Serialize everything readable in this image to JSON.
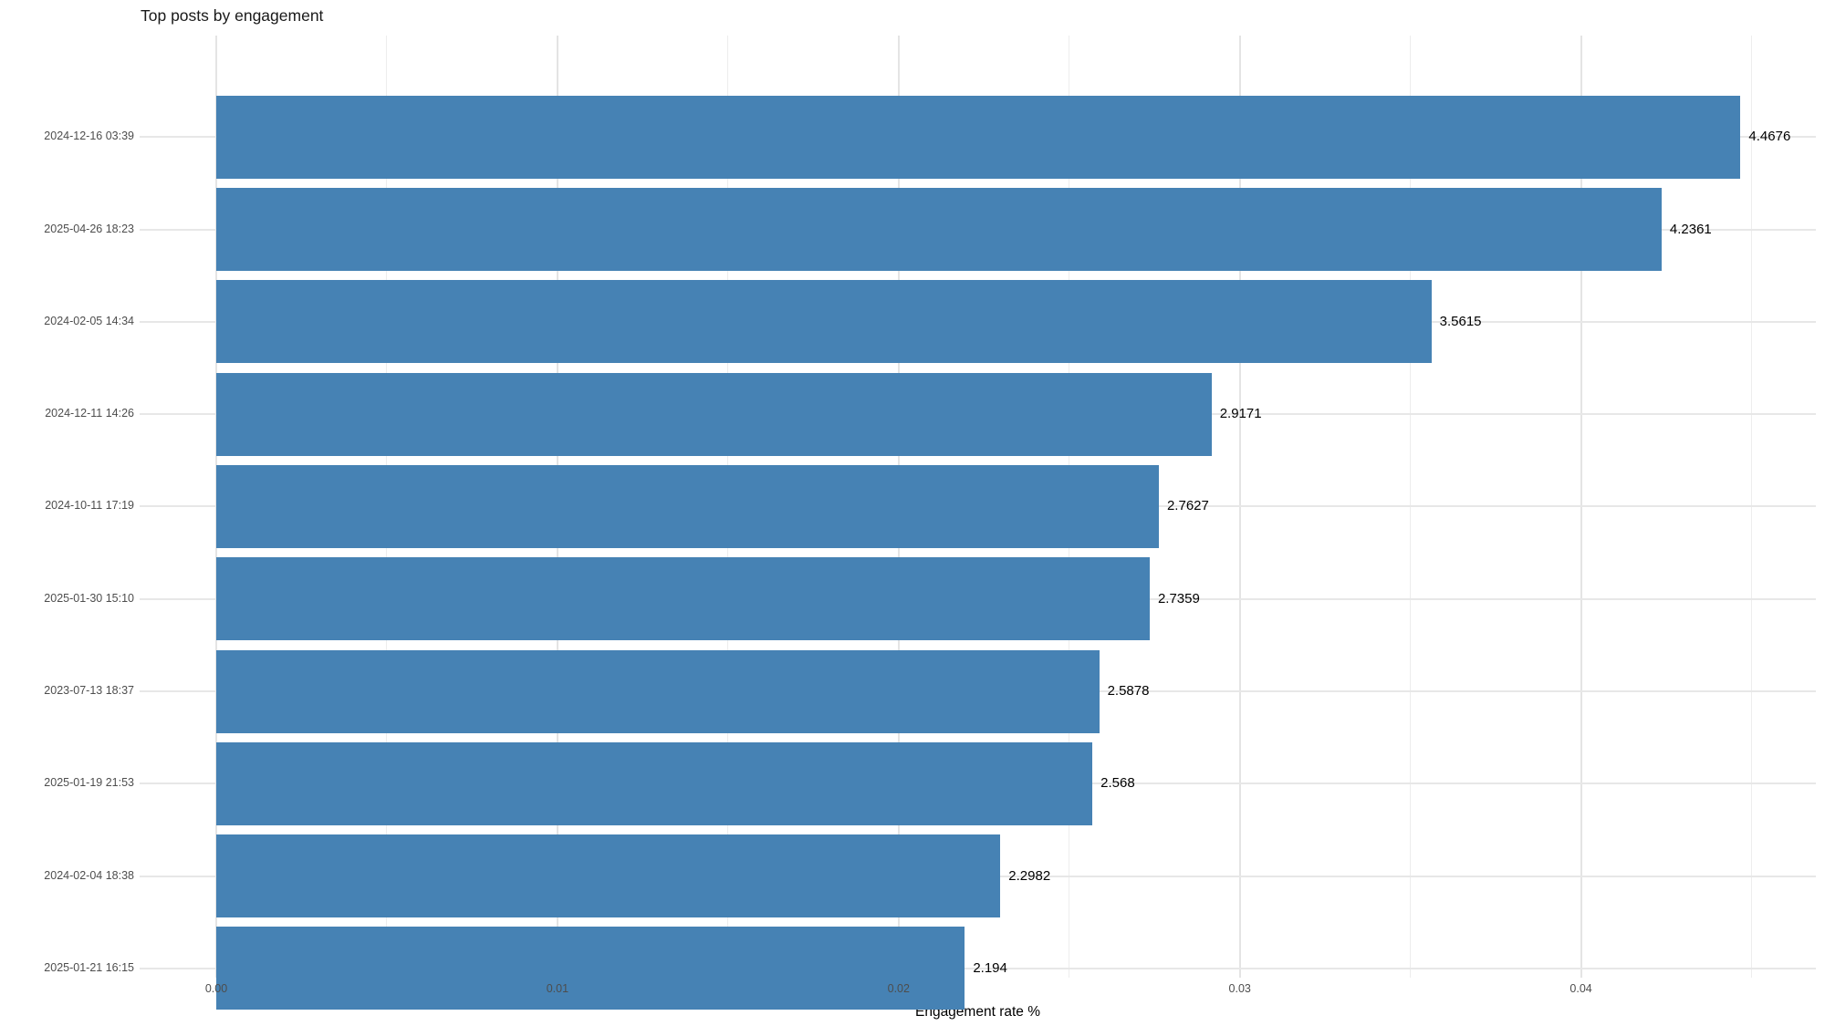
{
  "chart_data": {
    "type": "bar",
    "orientation": "horizontal",
    "title": "Top posts by engagement",
    "xlabel": "Engagement rate %",
    "ylabel": "",
    "categories": [
      "2024-12-16 03:39",
      "2025-04-26 18:23",
      "2024-02-05 14:34",
      "2024-12-11 14:26",
      "2024-10-11 17:19",
      "2025-01-30 15:10",
      "2023-07-13 18:37",
      "2025-01-19 21:53",
      "2024-02-04 18:38",
      "2025-01-21 16:15"
    ],
    "values_percent": [
      4.4676,
      4.2361,
      3.5615,
      2.9171,
      2.7627,
      2.7359,
      2.5878,
      2.568,
      2.2982,
      2.194
    ],
    "bar_value_labels": [
      "4.4676",
      "4.2361",
      "3.5615",
      "2.9171",
      "2.7627",
      "2.7359",
      "2.5878",
      "2.568",
      "2.2982",
      "2.194"
    ],
    "x_axis": {
      "tick_labels": [
        "0.00",
        "0.01",
        "0.02",
        "0.03",
        "0.04"
      ],
      "tick_values": [
        0,
        0.01,
        0.02,
        0.03,
        0.04
      ],
      "minor_tick_values": [
        0.005,
        0.015,
        0.025,
        0.035,
        0.045
      ],
      "range": [
        0,
        0.0469
      ],
      "units": "proportion (bars plotted as percent/100)"
    },
    "legend": "none",
    "grid": "light gray major+minor vertical lines, major horizontal line per category, white background, no axis lines",
    "colors": {
      "bar": "#4682B4",
      "grid_major": "#E4E4E4",
      "grid_minor": "#EDEDED",
      "axis_text": "#4D4D4D",
      "title_text": "#1A1A1A",
      "value_label_text": "#000000",
      "background": "#FFFFFF"
    }
  }
}
